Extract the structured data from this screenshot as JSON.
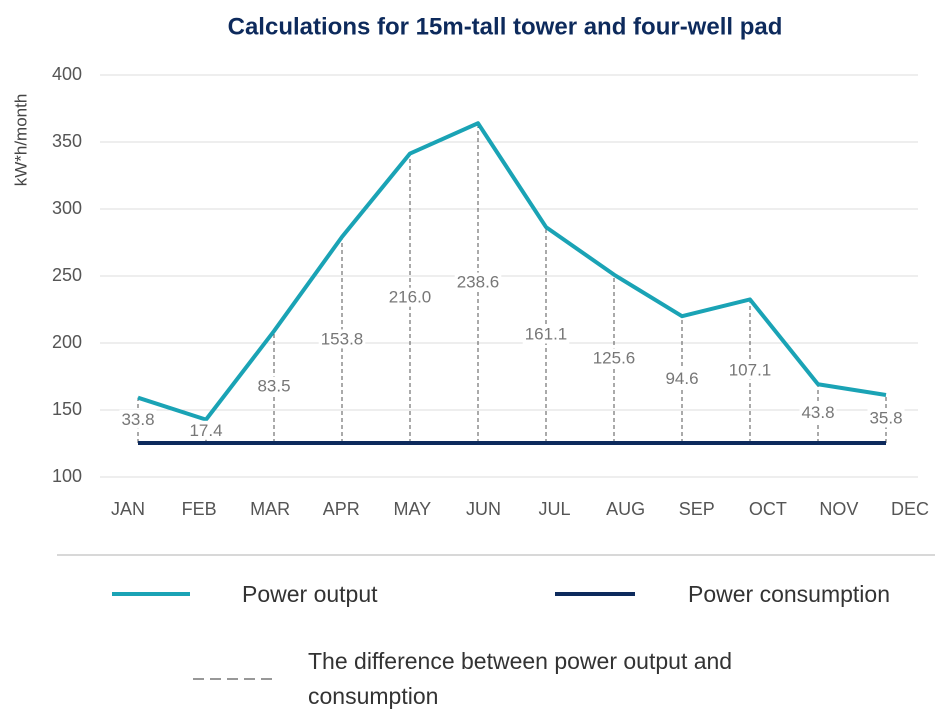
{
  "chart_data": {
    "type": "line",
    "title": "Calculations  for 15m-tall tower and four-well pad",
    "y_label": "kW*h/month",
    "categories": [
      "JAN",
      "FEB",
      "MAR",
      "APR",
      "MAY",
      "JUN",
      "JUL",
      "AUG",
      "SEP",
      "OCT",
      "NOV",
      "DEC"
    ],
    "series": [
      {
        "name": "Power output",
        "color": "#1aa3b5",
        "values": [
          159.2,
          142.8,
          208.9,
          279.2,
          341.4,
          364.0,
          286.5,
          251.0,
          220.0,
          232.5,
          169.2,
          161.2
        ]
      },
      {
        "name": "Power consumption",
        "color": "#0d2a5c",
        "values": [
          125.4,
          125.4,
          125.4,
          125.4,
          125.4,
          125.4,
          125.4,
          125.4,
          125.4,
          125.4,
          125.4,
          125.4
        ]
      },
      {
        "name": "The difference between power output and consumption",
        "color": "#555555",
        "dashed": true,
        "values": [
          33.8,
          17.4,
          83.5,
          153.8,
          216.0,
          238.6,
          161.1,
          125.6,
          94.6,
          107.1,
          43.8,
          35.8
        ],
        "value_labels": [
          "33.8",
          "17.4",
          "83.5",
          "153.8",
          "216.0",
          "238.6",
          "161.1",
          "125.6",
          "94.6",
          "107.1",
          "43.8",
          "35.8"
        ]
      }
    ],
    "ylim": [
      100,
      400
    ],
    "yticks": [
      100,
      150,
      200,
      250,
      300,
      350,
      400
    ],
    "grid": true,
    "legend": "bottom"
  }
}
